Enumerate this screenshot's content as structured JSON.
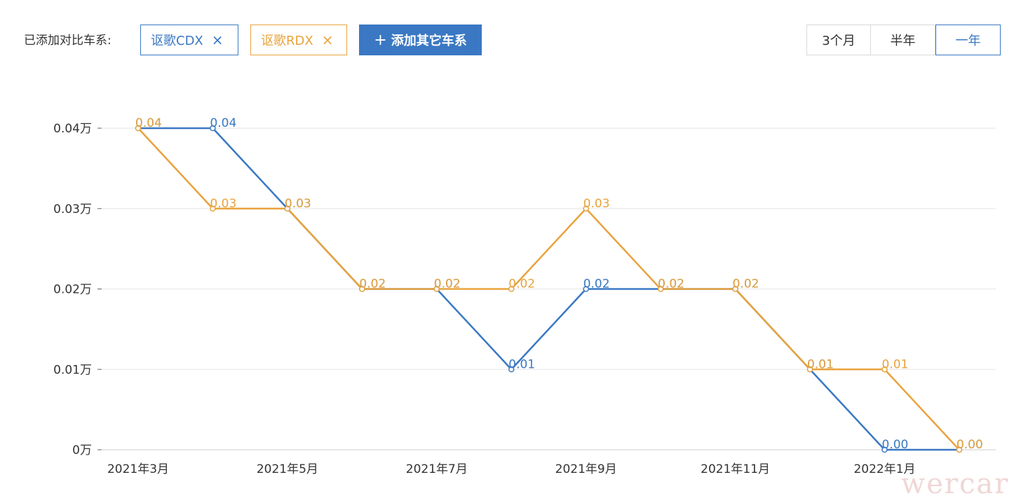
{
  "toolbar": {
    "compare_label": "已添加对比车系:",
    "tags": [
      {
        "label": "讴歌CDX",
        "remove": "×",
        "color": "#3a78c3"
      },
      {
        "label": "讴歌RDX",
        "remove": "×",
        "color": "#e8a33d"
      }
    ],
    "add_button": {
      "plus": "+",
      "label": "添加其它车系"
    },
    "ranges": [
      "3个月",
      "半年",
      "一年"
    ],
    "active_range": "一年"
  },
  "watermark": "wercar",
  "chart_data": {
    "type": "line",
    "x": [
      "2021年3月",
      "2021年4月",
      "2021年5月",
      "2021年6月",
      "2021年7月",
      "2021年8月",
      "2021年9月",
      "2021年10月",
      "2021年11月",
      "2021年12月",
      "2022年1月",
      "2022年2月"
    ],
    "x_tick_labels": [
      "2021年3月",
      "2021年5月",
      "2021年7月",
      "2021年9月",
      "2021年11月",
      "2022年1月"
    ],
    "y_tick_labels": [
      "0万",
      "0.01万",
      "0.02万",
      "0.03万",
      "0.04万"
    ],
    "ylim": [
      0,
      0.04
    ],
    "grid": true,
    "series": [
      {
        "name": "讴歌CDX",
        "color": "#3a78c3",
        "values": [
          0.04,
          0.04,
          0.03,
          0.02,
          0.02,
          0.01,
          0.02,
          0.02,
          0.02,
          0.01,
          0.0,
          0.0
        ],
        "labels": [
          "0.04",
          "0.04",
          "0.03",
          "0.02",
          "0.02",
          "0.01",
          "0.02",
          "0.02",
          "0.02",
          "0.01",
          "0.00",
          "0.00"
        ]
      },
      {
        "name": "讴歌RDX",
        "color": "#e8a33d",
        "values": [
          0.04,
          0.03,
          0.03,
          0.02,
          0.02,
          0.02,
          0.03,
          0.02,
          0.02,
          0.01,
          0.01,
          0.0
        ],
        "labels": [
          "0.04",
          "0.03",
          "0.03",
          "0.02",
          "0.02",
          "0.02",
          "0.03",
          "0.02",
          "0.02",
          "0.01",
          "0.01",
          "0.00"
        ]
      }
    ]
  }
}
